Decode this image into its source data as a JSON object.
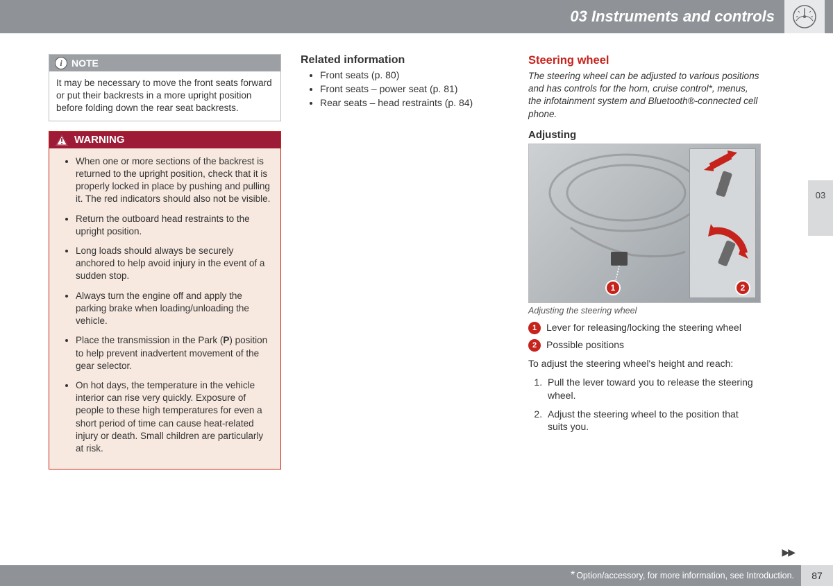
{
  "header": {
    "title": "03 Instruments and controls"
  },
  "sideTab": "03",
  "pageNumber": "87",
  "footerNote": "Option/accessory, for more information, see Introduction.",
  "note": {
    "label": "NOTE",
    "body": "It may be necessary to move the front seats forward or put their backrests in a more upright position before folding down the rear seat backrests."
  },
  "warning": {
    "label": "WARNING",
    "items": [
      "When one or more sections of the backrest is returned to the upright position, check that it is properly locked in place by pushing and pulling it. The red indicators should also not be visible.",
      "Return the outboard head restraints to the upright position.",
      "Long loads should always be securely anchored to help avoid injury in the event of a sudden stop.",
      "Always turn the engine off and apply the parking brake when loading/unloading the vehicle.",
      "Place the transmission in the Park (<b>P</b>) position to help prevent inadvertent movement of the gear selector.",
      "On hot days, the temperature in the vehicle interior can rise very quickly. Exposure of people to these high temperatures for even a short period of time can cause heat-related injury or death. Small children are particularly at risk."
    ]
  },
  "related": {
    "heading": "Related information",
    "items": [
      "Front seats (p. 80)",
      "Front seats – power seat (p. 81)",
      "Rear seats – head restraints (p. 84)"
    ]
  },
  "steering": {
    "title": "Steering wheel",
    "intro": "The steering wheel can be adjusted to various positions and has controls for the horn, cruise control*, menus, the infotainment system and Bluetooth®-connected cell phone.",
    "adjustingLabel": "Adjusting",
    "figureCaption": "Adjusting the steering wheel",
    "callouts": {
      "c1": "1",
      "c2": "2"
    },
    "legend": [
      {
        "n": "1",
        "text": "Lever for releasing/locking the steering wheel"
      },
      {
        "n": "2",
        "text": "Possible positions"
      }
    ],
    "stepsIntro": "To adjust the steering wheel's height and reach:",
    "steps": [
      "Pull the lever toward you to release the steering wheel.",
      "Adjust the steering wheel to the position that suits you."
    ]
  },
  "colors": {
    "headerBg": "#8f9398",
    "accentRed": "#c5231c",
    "warningHeader": "#9d1b36",
    "warningBody": "#f7e9df",
    "noteHeader": "#9ca0a4",
    "sideTabBg": "#d8dadb"
  }
}
